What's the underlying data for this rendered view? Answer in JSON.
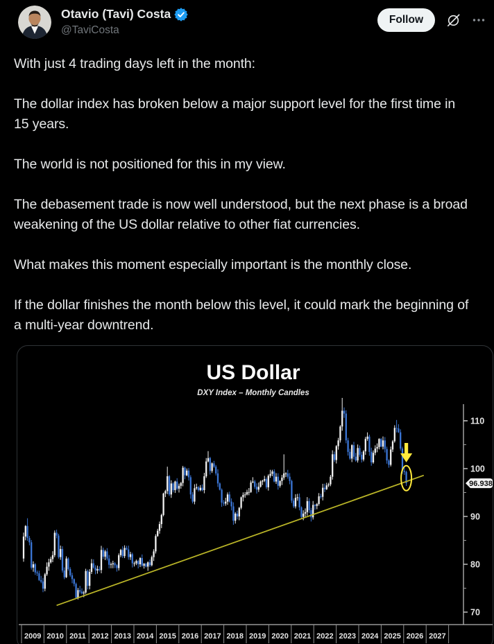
{
  "header": {
    "display_name": "Otavio (Tavi) Costa",
    "handle": "@TaviCosta",
    "follow_label": "Follow",
    "icons": [
      "verified-badge",
      "grok-icon",
      "more-icon"
    ]
  },
  "tweet": {
    "paragraphs": [
      "With just 4 trading days left in the month:",
      "The dollar index has broken below a major support level for the first time in 15 years.",
      "The world is not positioned for this in my view.",
      "The debasement trade is now well understood, but the next phase is a broad weakening of the US dollar relative to other fiat currencies.",
      "What makes this moment especially important is the monthly close.",
      "If the dollar finishes the month below this level, it could mark the beginning of a multi-year downtrend."
    ]
  },
  "chart_data": {
    "type": "candlestick",
    "title": "US Dollar",
    "subtitle": "DXY Index – Monthly Candles",
    "x_labels": [
      "2009",
      "2010",
      "2011",
      "2012",
      "2013",
      "2014",
      "2015",
      "2016",
      "2017",
      "2018",
      "2019",
      "2020",
      "2021",
      "2022",
      "2023",
      "2024",
      "2025",
      "2026",
      "2027"
    ],
    "y_ticks": [
      110,
      100,
      90,
      80,
      70
    ],
    "y_minor_ticks": [
      105,
      95,
      85,
      75
    ],
    "ylim": [
      67,
      113.5
    ],
    "last_price_label": "96.938",
    "months_start": "2009-01",
    "first_open": 81.2,
    "closes": [
      85.8,
      88.0,
      85.5,
      84.6,
      79.3,
      80.0,
      78.3,
      78.1,
      76.7,
      76.4,
      74.9,
      77.9,
      79.5,
      80.4,
      81.1,
      81.9,
      86.6,
      86.0,
      81.5,
      83.2,
      78.7,
      77.3,
      81.2,
      79.0,
      77.7,
      76.9,
      75.9,
      73.0,
      74.6,
      74.3,
      73.9,
      74.1,
      78.6,
      75.5,
      78.4,
      80.2,
      79.3,
      78.7,
      79.0,
      78.8,
      83.0,
      81.6,
      82.7,
      81.2,
      79.9,
      80.0,
      80.2,
      79.8,
      79.2,
      81.9,
      83.0,
      81.7,
      83.4,
      83.1,
      81.5,
      82.1,
      80.2,
      80.2,
      80.7,
      80.0,
      81.3,
      79.7,
      80.1,
      79.5,
      80.4,
      79.8,
      81.5,
      82.7,
      85.9,
      87.0,
      88.4,
      90.3,
      94.8,
      95.3,
      98.4,
      94.6,
      96.9,
      95.5,
      97.3,
      95.8,
      96.4,
      97.0,
      100.2,
      98.6,
      99.6,
      98.2,
      94.6,
      93.1,
      95.9,
      96.1,
      95.5,
      96.0,
      95.5,
      98.4,
      101.5,
      102.2,
      99.5,
      101.1,
      100.4,
      99.0,
      96.9,
      95.6,
      92.9,
      92.7,
      93.1,
      94.6,
      93.1,
      92.1,
      89.1,
      90.6,
      90.0,
      91.8,
      94.0,
      94.5,
      94.6,
      95.1,
      95.1,
      97.1,
      97.3,
      96.2,
      95.6,
      96.2,
      97.3,
      97.5,
      97.8,
      96.1,
      98.5,
      98.9,
      99.4,
      97.3,
      98.3,
      96.4,
      97.4,
      98.1,
      99.0,
      99.0,
      98.3,
      97.4,
      93.3,
      92.1,
      93.9,
      94.0,
      91.9,
      89.9,
      90.6,
      90.9,
      93.2,
      91.3,
      89.8,
      92.4,
      92.2,
      92.6,
      94.2,
      94.1,
      96.0,
      95.7,
      96.5,
      96.7,
      98.3,
      103.0,
      101.8,
      104.7,
      105.9,
      108.8,
      112.1,
      111.5,
      105.9,
      103.5,
      102.1,
      104.9,
      102.5,
      101.7,
      104.3,
      102.9,
      101.9,
      103.6,
      106.2,
      106.7,
      103.5,
      101.3,
      103.3,
      104.2,
      104.5,
      106.2,
      104.6,
      105.9,
      104.1,
      101.7,
      100.8,
      104.0,
      105.7,
      108.5,
      108.4,
      107.6,
      104.2,
      99.5,
      99.3,
      96.938
    ],
    "extremes": {
      "2": [
        89.62,
        null
      ],
      "28": [
        null,
        72.7
      ],
      "74": [
        100.4,
        null
      ],
      "95": [
        103.65,
        null
      ],
      "108": [
        null,
        88.25
      ],
      "134": [
        102.99,
        null
      ],
      "144": [
        null,
        89.2
      ],
      "148": [
        null,
        89.53
      ],
      "164": [
        114.78,
        null
      ],
      "192": [
        110.18,
        null
      ],
      "197": [
        null,
        96.37
      ]
    },
    "trendline": {
      "start": {
        "month": 17,
        "price": 71.4
      },
      "end": {
        "month": 206,
        "price": 98.6
      }
    },
    "annotations": {
      "arrow_down": {
        "month": 197
      },
      "circle": {
        "month": 197,
        "price": 98.0
      }
    },
    "legend_position": "none",
    "grid": false
  },
  "colors": {
    "background": "#000000",
    "text": "#e7e9ea",
    "muted": "#71767b",
    "accent_blue": "#1d9bf0",
    "follow_bg": "#eff3f4",
    "candle_up": "#f2f2f2",
    "candle_down": "#3b76d6",
    "trendline": "#b9b427",
    "annotation_yellow": "#ffe93c",
    "axis": "#c9c9c9",
    "price_tag_bg": "#f2f2f2",
    "price_tag_text": "#0d0d0d"
  }
}
